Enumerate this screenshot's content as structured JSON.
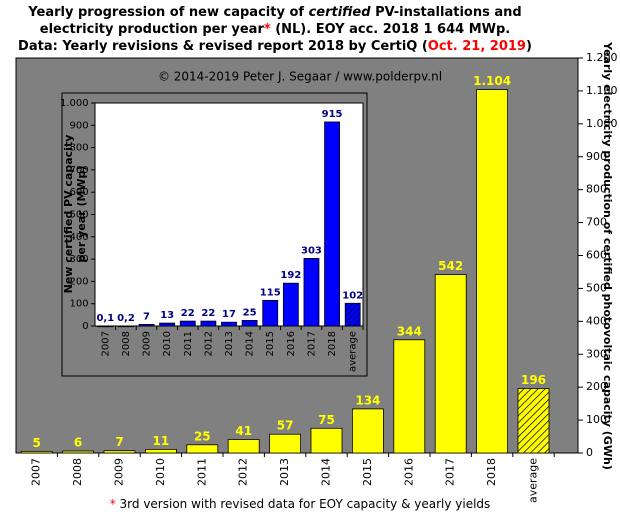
{
  "chart_data": [
    {
      "type": "bar",
      "title": [
        [
          {
            "text": "Yearly progression of new capacity of "
          },
          {
            "text": "certified",
            "italic": true
          },
          {
            "text": " PV-installations and"
          }
        ],
        [
          {
            "text": "electricity production per year"
          },
          {
            "text": "*",
            "color": "#ff0000"
          },
          {
            "text": " (NL). EOY acc. 2018 1 644 MWp."
          }
        ],
        [
          {
            "text": "Data: Yearly revisions & revised report 2018 by CertiQ ("
          },
          {
            "text": "Oct. 21, 2019",
            "color": "#ff0000"
          },
          {
            "text": ")"
          }
        ]
      ],
      "subtitle": "© 2014-2019 Peter J. Segaar / www.polderpv.nl",
      "y2label": "Yearly electricity production of certified photovoltaic capacity (GWh)",
      "categories": [
        "2007",
        "2008",
        "2009",
        "2010",
        "2011",
        "2012",
        "2013",
        "2014",
        "2015",
        "2016",
        "2017",
        "2018",
        "average"
      ],
      "values": [
        5,
        6,
        7,
        11,
        25,
        41,
        57,
        75,
        134,
        344,
        542,
        1104,
        196
      ],
      "value_labels": [
        "5",
        "6",
        "7",
        "11",
        "25",
        "41",
        "57",
        "75",
        "134",
        "344",
        "542",
        "1.104",
        "196"
      ],
      "color": "#ffff00",
      "y2lim": [
        0,
        1200
      ],
      "y2ticks": [
        0,
        100,
        200,
        300,
        400,
        500,
        600,
        700,
        800,
        900,
        {
          "value": 1000,
          "label": "1.000"
        },
        {
          "value": 1100,
          "label": "1.100"
        },
        {
          "value": 1200,
          "label": "1.200"
        }
      ],
      "footnote": [
        {
          "text": "*",
          "color": "#ff0000"
        },
        {
          "text": " 3rd version with revised data for EOY capacity & yearly yields"
        }
      ]
    },
    {
      "type": "bar",
      "ylabel": [
        "New certified PV capacity",
        "per year (MWp)"
      ],
      "categories": [
        "2007",
        "2008",
        "2009",
        "2010",
        "2011",
        "2012",
        "2013",
        "2014",
        "2015",
        "2016",
        "2017",
        "2018",
        "average"
      ],
      "values": [
        0.1,
        0.2,
        7,
        13,
        22,
        22,
        17,
        25,
        115,
        192,
        303,
        915,
        102
      ],
      "value_labels": [
        "0,1",
        "0,2",
        "7",
        "13",
        "22",
        "22",
        "17",
        "25",
        "115",
        "192",
        "303",
        "915",
        "102"
      ],
      "color": "#0000ff",
      "label_color": "#000080",
      "ylim": [
        0,
        1000
      ],
      "yticks": [
        0,
        100,
        200,
        300,
        400,
        500,
        600,
        700,
        800,
        900,
        {
          "value": 1000,
          "label": "1.000"
        }
      ]
    }
  ]
}
